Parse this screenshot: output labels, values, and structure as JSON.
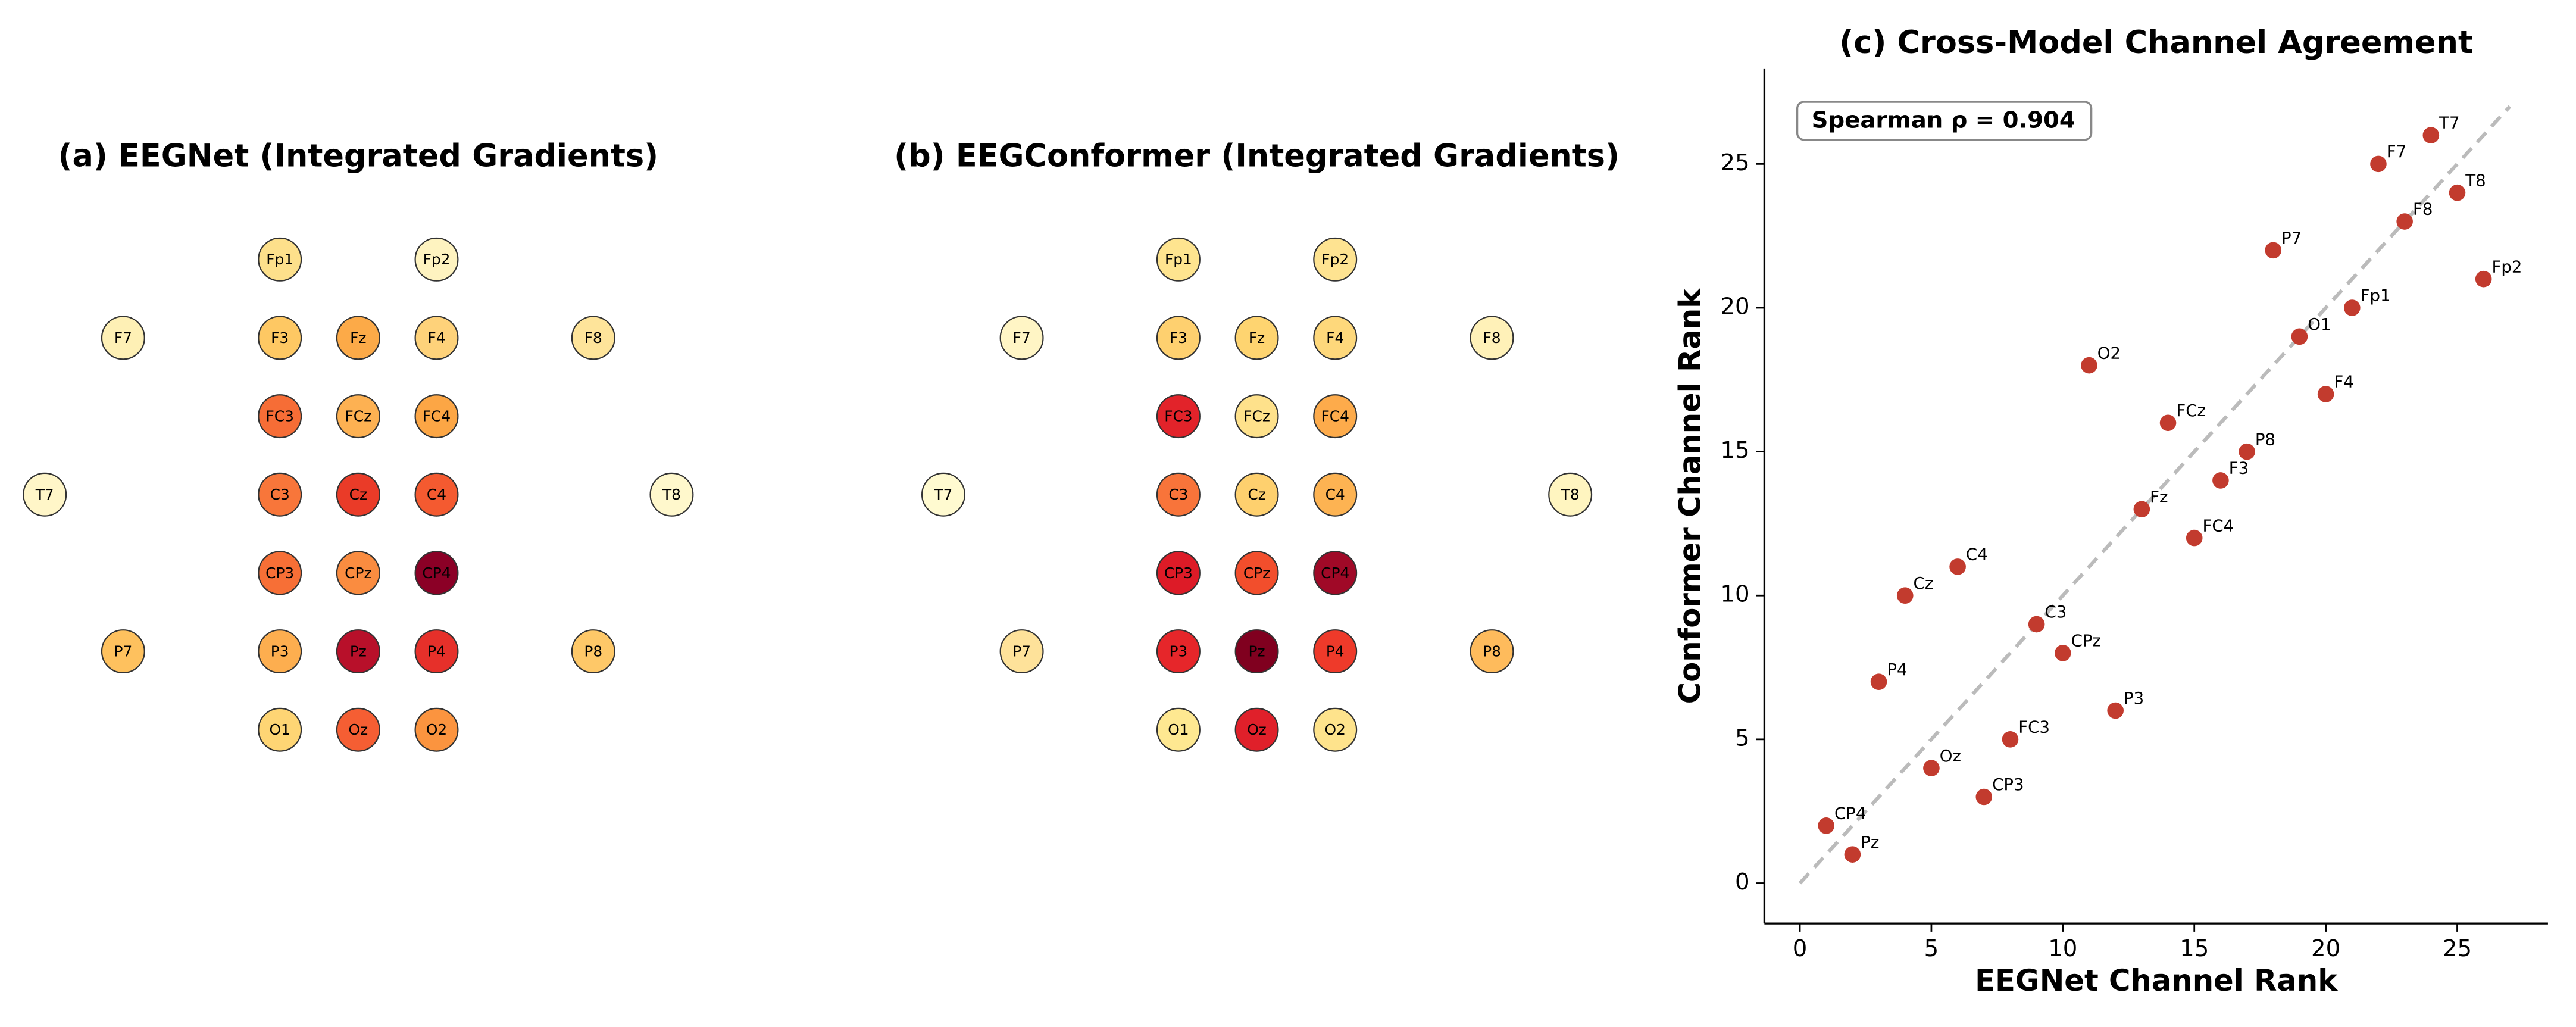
{
  "chart_data": [
    {
      "type": "topomap",
      "title": "(a) EEGNet (Integrated Gradients)",
      "channels": [
        "Fp1",
        "Fp2",
        "F7",
        "F3",
        "Fz",
        "F4",
        "F8",
        "FC3",
        "FCz",
        "FC4",
        "T7",
        "C3",
        "Cz",
        "C4",
        "T8",
        "CP3",
        "CPz",
        "CP4",
        "P7",
        "P3",
        "Pz",
        "P4",
        "P8",
        "O1",
        "Oz",
        "O2"
      ],
      "colors": [
        "#fde08b",
        "#fef3c0",
        "#fef0b5",
        "#fec863",
        "#fcaa48",
        "#fed27a",
        "#fee49a",
        "#f66d36",
        "#fdb152",
        "#fca645",
        "#fff6c8",
        "#f8763a",
        "#ea3b28",
        "#f45a30",
        "#fff8cc",
        "#f76f36",
        "#fa8c40",
        "#8b0026",
        "#fec15e",
        "#fdae4f",
        "#b8102a",
        "#e6302a",
        "#fec868",
        "#fed574",
        "#f55e33",
        "#fb943f"
      ]
    },
    {
      "type": "topomap",
      "title": "(b) EEGConformer (Integrated Gradients)",
      "channels": [
        "Fp1",
        "Fp2",
        "F7",
        "F3",
        "Fz",
        "F4",
        "F8",
        "FC3",
        "FCz",
        "FC4",
        "T7",
        "C3",
        "Cz",
        "C4",
        "T8",
        "CP3",
        "CPz",
        "CP4",
        "P7",
        "P3",
        "Pz",
        "P4",
        "P8",
        "O1",
        "Oz",
        "O2"
      ],
      "colors": [
        "#fee48f",
        "#fee391",
        "#fff5c5",
        "#fed06f",
        "#fed470",
        "#fed87b",
        "#fff1b8",
        "#e2232a",
        "#fee18b",
        "#fdab4b",
        "#fffad0",
        "#f8743a",
        "#fed06e",
        "#fdb352",
        "#fff5c0",
        "#dd1b27",
        "#f24e2c",
        "#a00927",
        "#fee29a",
        "#e6262a",
        "#80001f",
        "#ee3a2a",
        "#febb5c",
        "#fee891",
        "#e0202a",
        "#fee38c"
      ]
    },
    {
      "type": "scatter",
      "title": "(c) Cross-Model Channel Agreement",
      "x_label": "EEGNet Channel Rank",
      "y_label": "Conformer Channel Rank",
      "annotation": "Spearman ρ = 0.904",
      "labels": [
        "T7",
        "F7",
        "T8",
        "F8",
        "P7",
        "Fp2",
        "Fp1",
        "O1",
        "O2",
        "F4",
        "FCz",
        "P8",
        "F3",
        "Fz",
        "FC4",
        "C4",
        "Cz",
        "C3",
        "CPz",
        "P4",
        "P3",
        "FC3",
        "Oz",
        "CP3",
        "CP4",
        "Pz"
      ],
      "x": [
        24,
        22,
        25,
        23,
        18,
        26,
        21,
        19,
        11,
        20,
        14,
        17,
        16,
        13,
        15,
        6,
        4,
        9,
        10,
        3,
        12,
        8,
        5,
        7,
        1,
        2
      ],
      "y": [
        26,
        25,
        24,
        23,
        22,
        21,
        20,
        19,
        18,
        17,
        16,
        15,
        14,
        13,
        12,
        11,
        10,
        9,
        8,
        7,
        6,
        5,
        4,
        3,
        2,
        1
      ],
      "color": "#c23b2e",
      "xlim": [
        -1.35,
        28.45
      ],
      "ylim": [
        -1.4,
        28.3
      ],
      "xticks": [
        0,
        5,
        10,
        15,
        20,
        25
      ],
      "yticks": [
        0,
        5,
        10,
        15,
        20,
        25
      ],
      "reference_line": [
        0,
        27
      ],
      "reference_color": "#bbbbbb"
    }
  ]
}
